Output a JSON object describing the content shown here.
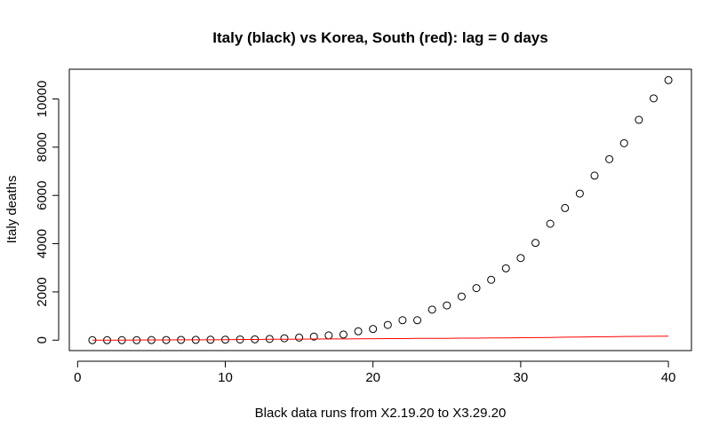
{
  "chart_data": {
    "type": "scatter",
    "title": "Italy (black) vs Korea, South (red): lag = 0 days",
    "xlabel": "Black data runs from X2.19.20 to X3.29.20",
    "ylabel": "Italy deaths",
    "xlim": [
      -0.56,
      41.56
    ],
    "ylim": [
      -432,
      11232
    ],
    "x_ticks": [
      0,
      10,
      20,
      30,
      40
    ],
    "y_ticks": [
      0,
      2000,
      4000,
      6000,
      8000,
      10000
    ],
    "grid": false,
    "legend": "none",
    "series": [
      {
        "marker": "open-circle",
        "color": "#000000",
        "x": [
          1,
          2,
          3,
          4,
          5,
          6,
          7,
          8,
          9,
          10,
          11,
          12,
          13,
          14,
          15,
          16,
          17,
          18,
          19,
          20,
          21,
          22,
          23,
          24,
          25,
          26,
          27,
          28,
          29,
          30,
          31,
          32,
          33,
          34,
          35,
          36,
          37,
          38,
          39,
          40
        ],
        "y": [
          0,
          0,
          0,
          0,
          3,
          7,
          11,
          12,
          17,
          21,
          29,
          34,
          52,
          79,
          107,
          148,
          197,
          233,
          366,
          463,
          631,
          827,
          827,
          1266,
          1441,
          1809,
          2158,
          2503,
          2978,
          3405,
          4032,
          4825,
          5476,
          6077,
          6820,
          7503,
          8165,
          9134,
          10023,
          10779
        ]
      },
      {
        "marker": "line",
        "color": "#ff0000",
        "x": [
          1,
          2,
          3,
          4,
          5,
          6,
          7,
          8,
          9,
          10,
          11,
          12,
          13,
          14,
          15,
          16,
          17,
          18,
          19,
          20,
          21,
          22,
          23,
          24,
          25,
          26,
          27,
          28,
          29,
          30,
          31,
          32,
          33,
          34,
          35,
          36,
          37,
          38,
          39,
          40
        ],
        "y": [
          0,
          1,
          2,
          6,
          8,
          11,
          12,
          13,
          16,
          17,
          28,
          28,
          35,
          35,
          42,
          44,
          50,
          53,
          54,
          60,
          66,
          66,
          72,
          75,
          75,
          81,
          84,
          91,
          94,
          102,
          104,
          111,
          126,
          131,
          139,
          144,
          152,
          158,
          162,
          165
        ]
      }
    ]
  }
}
